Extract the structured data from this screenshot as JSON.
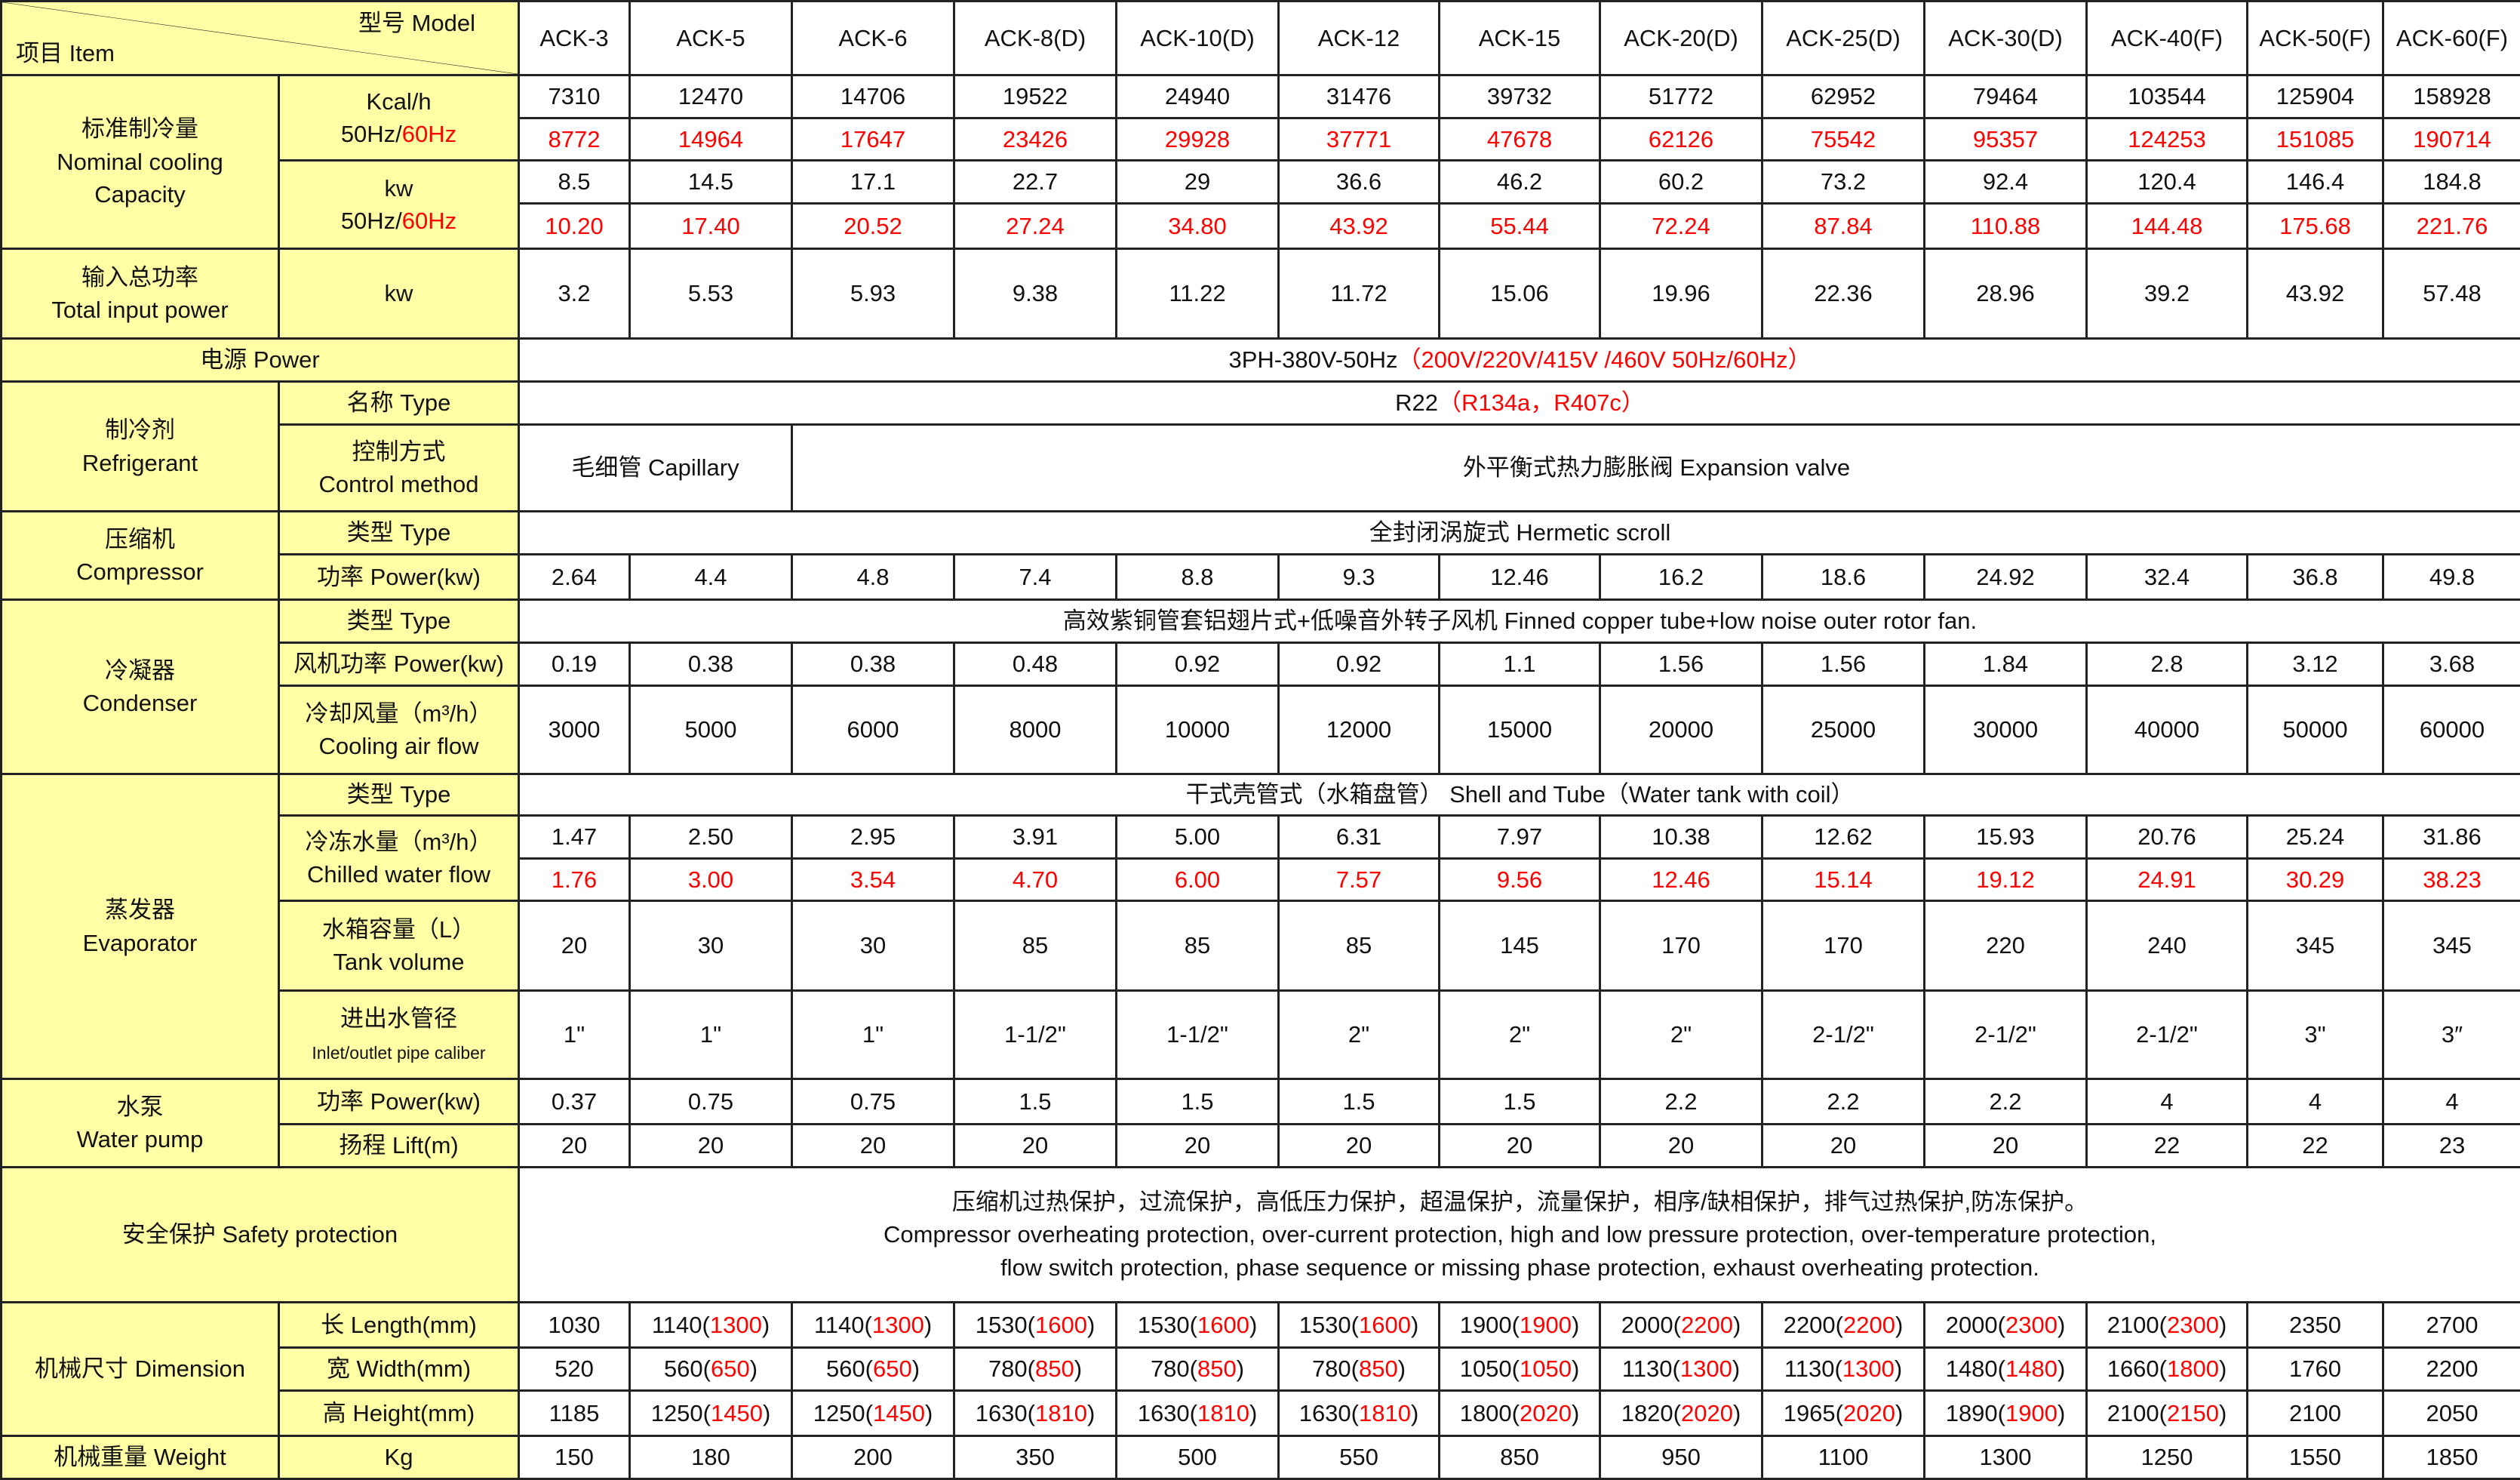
{
  "header": {
    "model_label": "型号  Model",
    "item_label": "项目  Item"
  },
  "colors": {
    "label_bg": "#FFFFA6",
    "alt_value": "#FF0000"
  },
  "models": [
    "ACK-3",
    "ACK-5",
    "ACK-6",
    "ACK-8(D)",
    "ACK-10(D)",
    "ACK-12",
    "ACK-15",
    "ACK-20(D)",
    "ACK-25(D)",
    "ACK-30(D)",
    "ACK-40(F)",
    "ACK-50(F)",
    "ACK-60(F)"
  ],
  "nominal_cooling": {
    "label_cn": "标准制冷量",
    "label_en1": "Nominal cooling",
    "label_en2": "Capacity",
    "kcal_unit": "Kcal/h",
    "kw_unit": "kw",
    "hz_50": "50Hz/",
    "hz_60": "60Hz",
    "kcal_50": [
      "7310",
      "12470",
      "14706",
      "19522",
      "24940",
      "31476",
      "39732",
      "51772",
      "62952",
      "79464",
      "103544",
      "125904",
      "158928"
    ],
    "kcal_60": [
      "8772",
      "14964",
      "17647",
      "23426",
      "29928",
      "37771",
      "47678",
      "62126",
      "75542",
      "95357",
      "124253",
      "151085",
      "190714"
    ],
    "kw_50": [
      "8.5",
      "14.5",
      "17.1",
      "22.7",
      "29",
      "36.6",
      "46.2",
      "60.2",
      "73.2",
      "92.4",
      "120.4",
      "146.4",
      "184.8"
    ],
    "kw_60": [
      "10.20",
      "17.40",
      "20.52",
      "27.24",
      "34.80",
      "43.92",
      "55.44",
      "72.24",
      "87.84",
      "110.88",
      "144.48",
      "175.68",
      "221.76"
    ]
  },
  "total_input_power": {
    "label_cn": "输入总功率",
    "label_en": "Total input power",
    "unit": "kw",
    "values": [
      "3.2",
      "5.53",
      "5.93",
      "9.38",
      "11.22",
      "11.72",
      "15.06",
      "19.96",
      "22.36",
      "28.96",
      "39.2",
      "43.92",
      "57.48"
    ]
  },
  "power": {
    "label": "电源  Power",
    "value": "3PH-380V-50Hz",
    "alt": "（200V/220V/415V /460V  50Hz/60Hz）"
  },
  "refrigerant": {
    "label_cn": "制冷剂",
    "label_en": "Refrigerant",
    "type_label": "名称  Type",
    "type_value": "R22",
    "type_alt": "（R134a，R407c）",
    "control_label_cn": "控制方式",
    "control_label_en": "Control method",
    "control_capillary": "毛细管 Capillary",
    "control_expansion": "外平衡式热力膨胀阀 Expansion valve"
  },
  "compressor": {
    "label_cn": "压缩机",
    "label_en": "Compressor",
    "type_label": "类型  Type",
    "type_value": "全封闭涡旋式 Hermetic scroll",
    "power_label": "功率  Power(kw)",
    "power_values": [
      "2.64",
      "4.4",
      "4.8",
      "7.4",
      "8.8",
      "9.3",
      "12.46",
      "16.2",
      "18.6",
      "24.92",
      "32.4",
      "36.8",
      "49.8"
    ]
  },
  "condenser": {
    "label_cn": "冷凝器",
    "label_en": "Condenser",
    "type_label": "类型  Type",
    "type_value": "高效紫铜管套铝翅片式+低噪音外转子风机 Finned copper tube+low noise outer rotor fan.",
    "fan_label": "风机功率 Power(kw)",
    "fan_values": [
      "0.19",
      "0.38",
      "0.38",
      "0.48",
      "0.92",
      "0.92",
      "1.1",
      "1.56",
      "1.56",
      "1.84",
      "2.8",
      "3.12",
      "3.68"
    ],
    "air_label_cn": "冷却风量（m³/h）",
    "air_label_en": "Cooling air flow",
    "air_values": [
      "3000",
      "5000",
      "6000",
      "8000",
      "10000",
      "12000",
      "15000",
      "20000",
      "25000",
      "30000",
      "40000",
      "50000",
      "60000"
    ]
  },
  "evaporator": {
    "label_cn": "蒸发器",
    "label_en": "Evaporator",
    "type_label": "类型  Type",
    "type_value": "干式壳管式（水箱盘管） Shell and Tube（Water tank with coil）",
    "chilled_label_cn": "冷冻水量（m³/h）",
    "chilled_label_en": "Chilled water flow",
    "chilled_50": [
      "1.47",
      "2.50",
      "2.95",
      "3.91",
      "5.00",
      "6.31",
      "7.97",
      "10.38",
      "12.62",
      "15.93",
      "20.76",
      "25.24",
      "31.86"
    ],
    "chilled_60": [
      "1.76",
      "3.00",
      "3.54",
      "4.70",
      "6.00",
      "7.57",
      "9.56",
      "12.46",
      "15.14",
      "19.12",
      "24.91",
      "30.29",
      "38.23"
    ],
    "tank_label_cn": "水箱容量（L）",
    "tank_label_en": "Tank volume",
    "tank_values": [
      "20",
      "30",
      "30",
      "85",
      "85",
      "85",
      "145",
      "170",
      "170",
      "220",
      "240",
      "345",
      "345"
    ],
    "pipe_label_cn": "进出水管径",
    "pipe_label_en": "Inlet/outlet pipe caliber",
    "pipe_values": [
      "1\"",
      "1\"",
      "1\"",
      "1-1/2\"",
      "1-1/2\"",
      "2\"",
      "2\"",
      "2\"",
      "2-1/2\"",
      "2-1/2\"",
      "2-1/2\"",
      "3\"",
      "3″"
    ]
  },
  "water_pump": {
    "label_cn": "水泵",
    "label_en": "Water pump",
    "power_label": "功率  Power(kw)",
    "power_values": [
      "0.37",
      "0.75",
      "0.75",
      "1.5",
      "1.5",
      "1.5",
      "1.5",
      "2.2",
      "2.2",
      "2.2",
      "4",
      "4",
      "4"
    ],
    "lift_label": "扬程  Lift(m)",
    "lift_values": [
      "20",
      "20",
      "20",
      "20",
      "20",
      "20",
      "20",
      "20",
      "20",
      "20",
      "22",
      "22",
      "23"
    ]
  },
  "safety": {
    "label": "安全保护  Safety protection",
    "line1": "压缩机过热保护，过流保护，高低压力保护，超温保护，流量保护，相序/缺相保护，排气过热保护,防冻保护。",
    "line2": "Compressor overheating protection, over-current protection, high and low pressure protection, over-temperature protection,",
    "line3": "flow switch protection, phase sequence or missing phase protection, exhaust overheating protection."
  },
  "dimension": {
    "label": "机械尺寸  Dimension",
    "length_label": "长  Length(mm)",
    "length": [
      "1030",
      "1140",
      "1140",
      "1530",
      "1530",
      "1530",
      "1900",
      "2000",
      "2200",
      "2000",
      "2100",
      "2350",
      "2700"
    ],
    "length_alt": [
      null,
      "1300",
      "1300",
      "1600",
      "1600",
      "1600",
      "1900",
      "2200",
      "2200",
      "2300",
      "2300",
      null,
      null
    ],
    "width_label": "宽  Width(mm)",
    "width": [
      "520",
      "560",
      "560",
      "780",
      "780",
      "780",
      "1050",
      "1130",
      "1130",
      "1480",
      "1660",
      "1760",
      "2200"
    ],
    "width_alt": [
      null,
      "650",
      "650",
      "850",
      "850",
      "850",
      "1050",
      "1300",
      "1300",
      "1480",
      "1800",
      null,
      null
    ],
    "height_label": "高  Height(mm)",
    "height": [
      "1185",
      "1250",
      "1250",
      "1630",
      "1630",
      "1630",
      "1800",
      "1820",
      "1965",
      "1890",
      "2100",
      "2100",
      "2050"
    ],
    "height_alt": [
      null,
      "1450",
      "1450",
      "1810",
      "1810",
      "1810",
      "2020",
      "2020",
      "2020",
      "1900",
      "2150",
      null,
      null
    ]
  },
  "weight": {
    "label": "机械重量  Weight",
    "unit": "Kg",
    "values": [
      "150",
      "180",
      "200",
      "350",
      "500",
      "550",
      "850",
      "950",
      "1100",
      "1300",
      "1250",
      "1550",
      "1850"
    ]
  }
}
